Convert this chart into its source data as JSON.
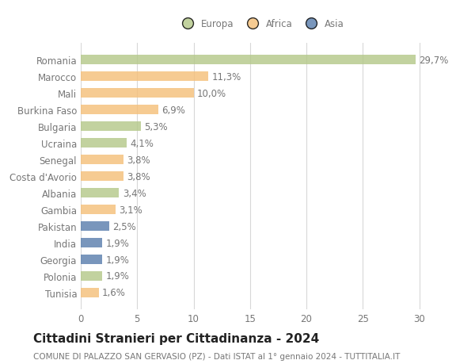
{
  "categories": [
    "Romania",
    "Marocco",
    "Mali",
    "Burkina Faso",
    "Bulgaria",
    "Ucraina",
    "Senegal",
    "Costa d'Avorio",
    "Albania",
    "Gambia",
    "Pakistan",
    "India",
    "Georgia",
    "Polonia",
    "Tunisia"
  ],
  "values": [
    29.7,
    11.3,
    10.0,
    6.9,
    5.3,
    4.1,
    3.8,
    3.8,
    3.4,
    3.1,
    2.5,
    1.9,
    1.9,
    1.9,
    1.6
  ],
  "labels": [
    "29,7%",
    "11,3%",
    "10,0%",
    "6,9%",
    "5,3%",
    "4,1%",
    "3,8%",
    "3,8%",
    "3,4%",
    "3,1%",
    "2,5%",
    "1,9%",
    "1,9%",
    "1,9%",
    "1,6%"
  ],
  "colors": [
    "#b5c98a",
    "#f5c07a",
    "#f5c07a",
    "#f5c07a",
    "#b5c98a",
    "#b5c98a",
    "#f5c07a",
    "#f5c07a",
    "#b5c98a",
    "#f5c07a",
    "#5b7fae",
    "#5b7fae",
    "#5b7fae",
    "#b5c98a",
    "#f5c07a"
  ],
  "continent": [
    "Europa",
    "Africa",
    "Africa",
    "Africa",
    "Europa",
    "Europa",
    "Africa",
    "Africa",
    "Europa",
    "Africa",
    "Asia",
    "Asia",
    "Asia",
    "Europa",
    "Africa"
  ],
  "legend_labels": [
    "Europa",
    "Africa",
    "Asia"
  ],
  "legend_colors": [
    "#b5c98a",
    "#f5c07a",
    "#5b7fae"
  ],
  "title": "Cittadini Stranieri per Cittadinanza - 2024",
  "subtitle": "COMUNE DI PALAZZO SAN GERVASIO (PZ) - Dati ISTAT al 1° gennaio 2024 - TUTTITALIA.IT",
  "xlim": [
    0,
    32
  ],
  "xticks": [
    0,
    5,
    10,
    15,
    20,
    25,
    30
  ],
  "bg_color": "#ffffff",
  "grid_color": "#d8d8d8",
  "bar_alpha": 0.82,
  "text_color": "#777777",
  "label_fontsize": 8.5,
  "tick_fontsize": 8.5,
  "title_fontsize": 11,
  "subtitle_fontsize": 7.5
}
